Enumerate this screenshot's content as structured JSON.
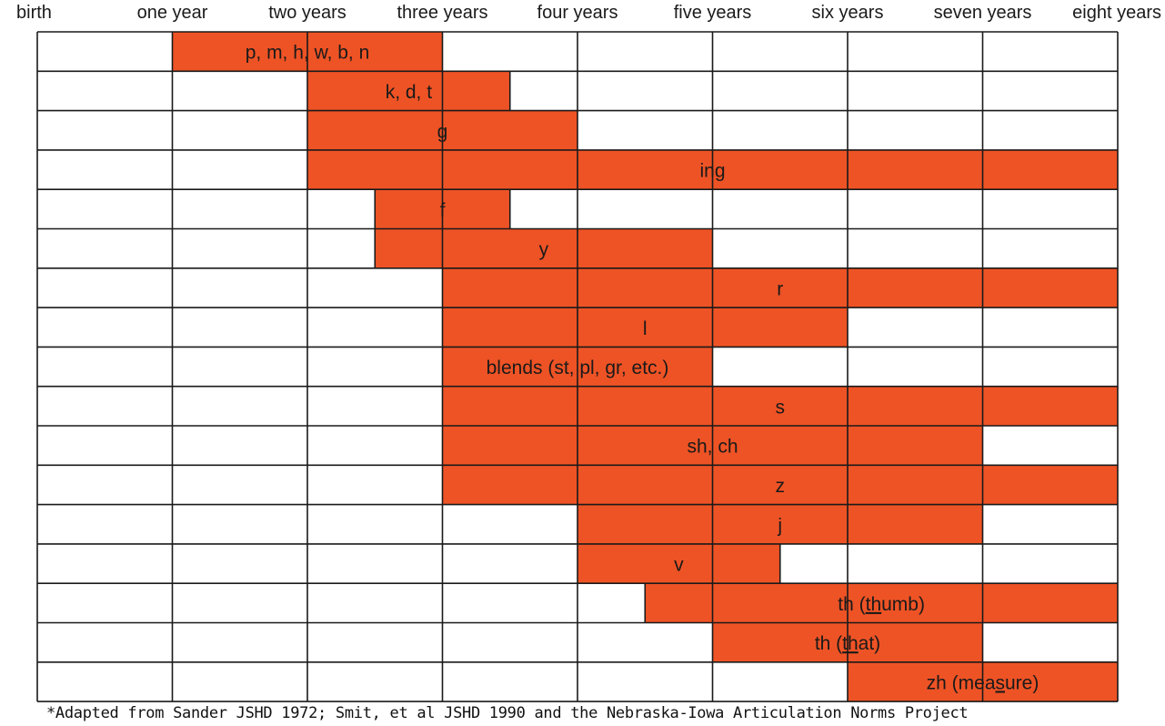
{
  "chart_data": {
    "type": "bar",
    "orientation": "horizontal",
    "style": "gantt-range",
    "x_tick_labels": [
      "birth",
      "one year",
      "two years",
      "three years",
      "four years",
      "five years",
      "six years",
      "seven years",
      "eight years"
    ],
    "xlim": [
      0,
      8
    ],
    "x_unit": "years",
    "grid": true,
    "bar_color": "#ee5325",
    "rows": [
      {
        "label": "p, m, h, w, b, n",
        "start": 1,
        "end": 3
      },
      {
        "label": "k, d, t",
        "start": 2,
        "end": 3.5
      },
      {
        "label": "g",
        "start": 2,
        "end": 4
      },
      {
        "label": "ing",
        "start": 2,
        "end": 8
      },
      {
        "label": "f",
        "start": 2.5,
        "end": 3.5
      },
      {
        "label": "y",
        "start": 2.5,
        "end": 5
      },
      {
        "label": "r",
        "start": 3,
        "end": 8
      },
      {
        "label": "l",
        "start": 3,
        "end": 6
      },
      {
        "label": "blends (st, pl, gr, etc.)",
        "start": 3,
        "end": 5
      },
      {
        "label": "s",
        "start": 3,
        "end": 8
      },
      {
        "label": "sh, ch",
        "start": 3,
        "end": 7
      },
      {
        "label": "z",
        "start": 3,
        "end": 8
      },
      {
        "label": "j",
        "start": 4,
        "end": 7
      },
      {
        "label": "v",
        "start": 4,
        "end": 5.5
      },
      {
        "label": "th (thumb)",
        "start": 4.5,
        "end": 8,
        "underline": {
          "pre": "th (",
          "mark": "th",
          "post": "umb)"
        }
      },
      {
        "label": "th (that)",
        "start": 5,
        "end": 7,
        "underline": {
          "pre": "th (",
          "mark": "th",
          "post": "at)"
        }
      },
      {
        "label": "zh (measure)",
        "start": 6,
        "end": 8,
        "underline": {
          "pre": "zh (mea",
          "mark": "s",
          "post": "ure)"
        }
      }
    ]
  },
  "footnote": "*Adapted from Sander JSHD 1972; Smit, et al JSHD 1990 and the Nebraska-Iowa Articulation Norms Project"
}
